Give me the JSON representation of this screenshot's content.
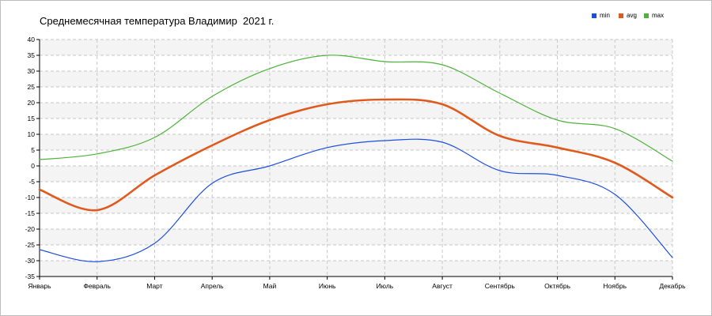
{
  "chart_data": {
    "type": "line",
    "title": "Среднемесячная температура Владимир  2021 г.",
    "categories": [
      "Январь",
      "Февраль",
      "Март",
      "Апрель",
      "Май",
      "Июнь",
      "Июль",
      "Август",
      "Сентябрь",
      "Октябрь",
      "Ноябрь",
      "Декабрь"
    ],
    "series": [
      {
        "name": "min",
        "color": "#1d4ee0",
        "values": [
          -26.5,
          -30.3,
          -24.5,
          -5.5,
          0.0,
          5.8,
          8.0,
          7.5,
          -1.5,
          -3.0,
          -9.0,
          -29.0
        ]
      },
      {
        "name": "avg",
        "color": "#e05a1d",
        "values": [
          -7.5,
          -14.0,
          -3.0,
          6.5,
          14.5,
          19.5,
          21.0,
          19.5,
          9.5,
          5.8,
          1.0,
          -10.0
        ]
      },
      {
        "name": "max",
        "color": "#4db33a",
        "values": [
          2.0,
          3.8,
          9.0,
          22.0,
          30.8,
          35.0,
          33.0,
          32.0,
          23.0,
          14.5,
          11.8,
          1.5
        ]
      }
    ],
    "ylim": [
      -35,
      40
    ],
    "yticks": [
      40,
      35,
      30,
      25,
      20,
      15,
      10,
      5,
      0,
      -5,
      -10,
      -15,
      -20,
      -25,
      -30,
      -35
    ],
    "xlabel": "",
    "ylabel": "",
    "grid": true,
    "legend_position": "top-right"
  }
}
